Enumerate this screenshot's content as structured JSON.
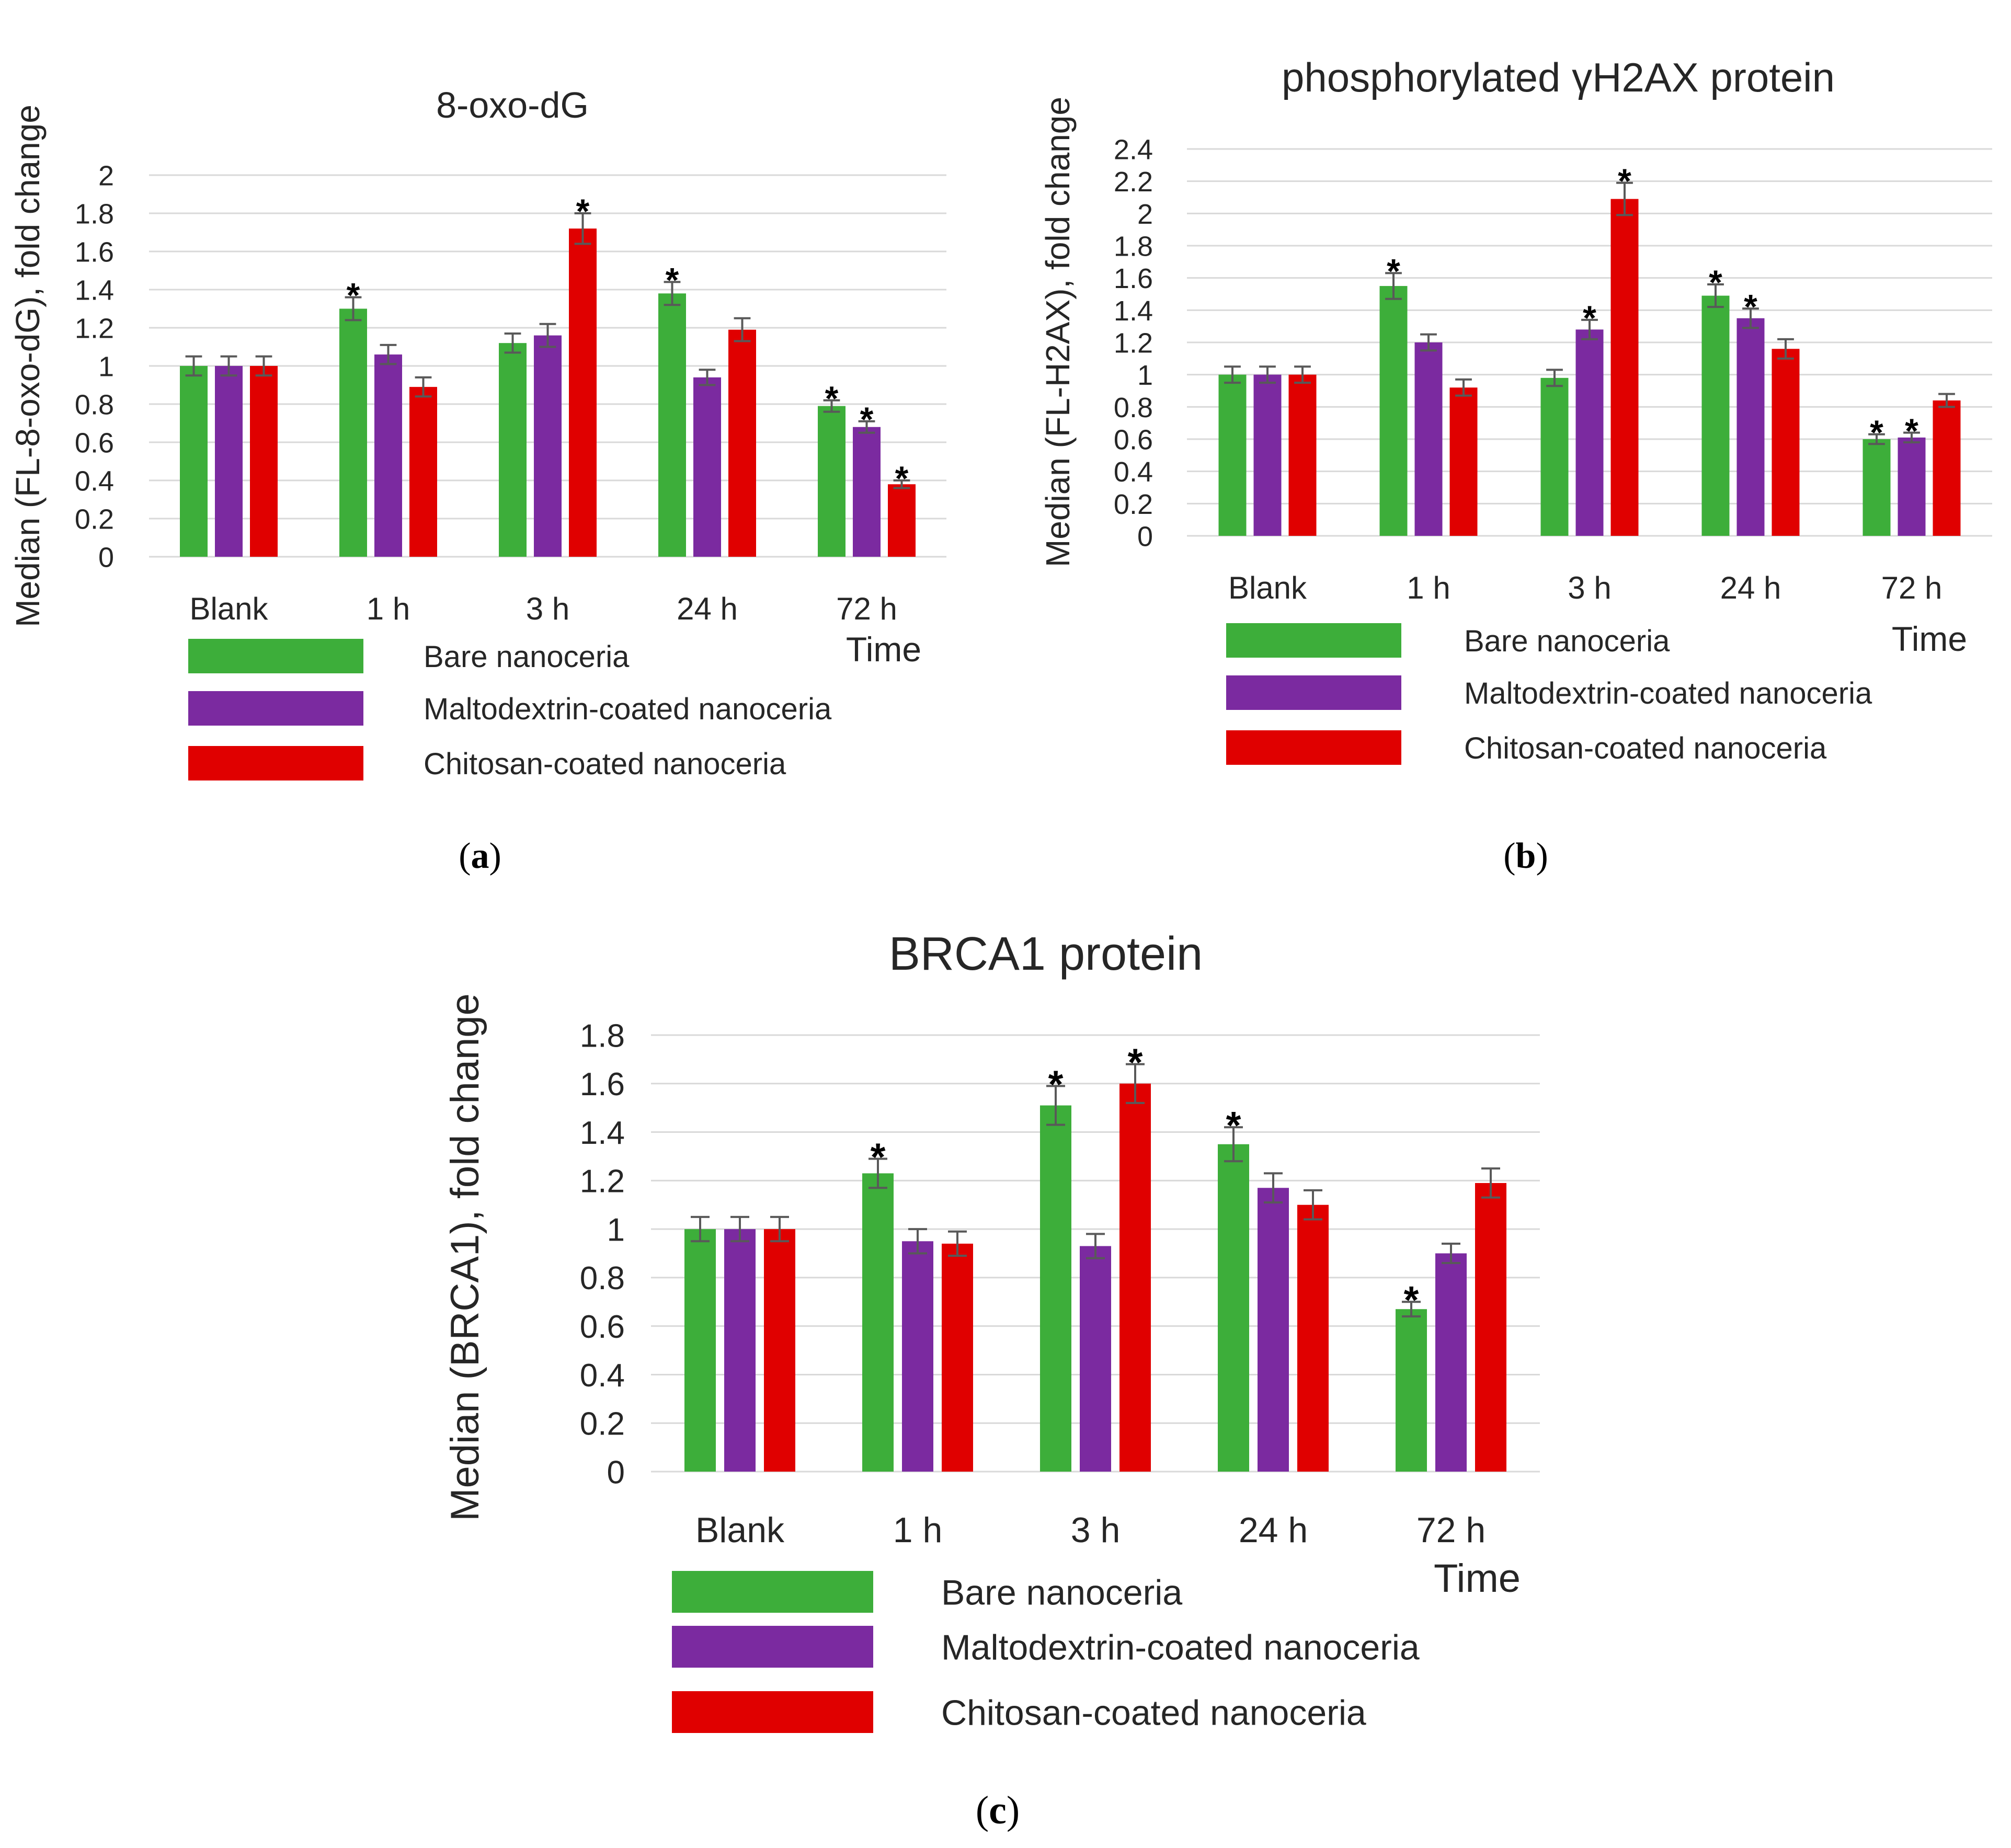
{
  "colors": {
    "green": "#3DAE3A",
    "purple": "#7B2AA0",
    "red": "#E00000",
    "grid": "#D9D9D9",
    "error": "#595959"
  },
  "chart_data": [
    {
      "id": "a",
      "type": "bar",
      "title": "8-oxo-dG",
      "ylabel": "Median (FL-8-oxo-dG), fold change",
      "xlabel": "Time",
      "sub_label": "a",
      "categories": [
        "Blank",
        "1 h",
        "3 h",
        "24 h",
        "72 h"
      ],
      "ylim": [
        0,
        2
      ],
      "yticks": [
        "0",
        "0.2",
        "0.4",
        "0.6",
        "0.8",
        "1",
        "1.2",
        "1.4",
        "1.6",
        "1.8",
        "2"
      ],
      "series": [
        {
          "name": "Bare nanoceria",
          "color": "green",
          "values": [
            1.0,
            1.3,
            1.12,
            1.38,
            0.79
          ],
          "errors": [
            0.05,
            0.06,
            0.05,
            0.06,
            0.03
          ],
          "significant": [
            false,
            true,
            false,
            true,
            true
          ]
        },
        {
          "name": "Maltodextrin-coated nanoceria",
          "color": "purple",
          "values": [
            1.0,
            1.06,
            1.16,
            0.94,
            0.68
          ],
          "errors": [
            0.05,
            0.05,
            0.06,
            0.04,
            0.03
          ],
          "significant": [
            false,
            false,
            false,
            false,
            true
          ]
        },
        {
          "name": "Chitosan-coated nanoceria",
          "color": "red",
          "values": [
            1.0,
            0.89,
            1.72,
            1.19,
            0.38
          ],
          "errors": [
            0.05,
            0.05,
            0.08,
            0.06,
            0.02
          ],
          "significant": [
            false,
            false,
            true,
            false,
            true
          ]
        }
      ]
    },
    {
      "id": "b",
      "type": "bar",
      "title": "phosphorylated γH2AX protein",
      "ylabel": "Median (FL-H2AX), fold change",
      "xlabel": "Time",
      "sub_label": "b",
      "categories": [
        "Blank",
        "1 h",
        "3 h",
        "24 h",
        "72 h"
      ],
      "ylim": [
        0,
        2.4
      ],
      "yticks": [
        "0",
        "0.2",
        "0.4",
        "0.6",
        "0.8",
        "1",
        "1.2",
        "1.4",
        "1.6",
        "1.8",
        "2",
        "2.2",
        "2.4"
      ],
      "series": [
        {
          "name": "Bare nanoceria",
          "color": "green",
          "values": [
            1.0,
            1.55,
            0.98,
            1.49,
            0.6
          ],
          "errors": [
            0.05,
            0.08,
            0.05,
            0.07,
            0.03
          ],
          "significant": [
            false,
            true,
            false,
            true,
            true
          ]
        },
        {
          "name": "Maltodextrin-coated nanoceria",
          "color": "purple",
          "values": [
            1.0,
            1.2,
            1.28,
            1.35,
            0.61
          ],
          "errors": [
            0.05,
            0.05,
            0.06,
            0.06,
            0.03
          ],
          "significant": [
            false,
            false,
            true,
            true,
            true
          ]
        },
        {
          "name": "Chitosan-coated nanoceria",
          "color": "red",
          "values": [
            1.0,
            0.92,
            2.09,
            1.16,
            0.84
          ],
          "errors": [
            0.05,
            0.05,
            0.1,
            0.06,
            0.04
          ],
          "significant": [
            false,
            false,
            true,
            false,
            false
          ]
        }
      ]
    },
    {
      "id": "c",
      "type": "bar",
      "title": "BRCA1 protein",
      "ylabel": "Median (BRCA1), fold change",
      "xlabel": "Time",
      "sub_label": "c",
      "categories": [
        "Blank",
        "1 h",
        "3 h",
        "24 h",
        "72 h"
      ],
      "ylim": [
        0,
        1.8
      ],
      "yticks": [
        "0",
        "0.2",
        "0.4",
        "0.6",
        "0.8",
        "1",
        "1.2",
        "1.4",
        "1.6",
        "1.8"
      ],
      "series": [
        {
          "name": "Bare nanoceria",
          "color": "green",
          "values": [
            1.0,
            1.23,
            1.51,
            1.35,
            0.67
          ],
          "errors": [
            0.05,
            0.06,
            0.08,
            0.07,
            0.03
          ],
          "significant": [
            false,
            true,
            true,
            true,
            true
          ]
        },
        {
          "name": "Maltodextrin-coated nanoceria",
          "color": "purple",
          "values": [
            1.0,
            0.95,
            0.93,
            1.17,
            0.9
          ],
          "errors": [
            0.05,
            0.05,
            0.05,
            0.06,
            0.04
          ],
          "significant": [
            false,
            false,
            false,
            false,
            false
          ]
        },
        {
          "name": "Chitosan-coated nanoceria",
          "color": "red",
          "values": [
            1.0,
            0.94,
            1.6,
            1.1,
            1.19
          ],
          "errors": [
            0.05,
            0.05,
            0.08,
            0.06,
            0.06
          ],
          "significant": [
            false,
            false,
            true,
            false,
            false
          ]
        }
      ]
    }
  ]
}
